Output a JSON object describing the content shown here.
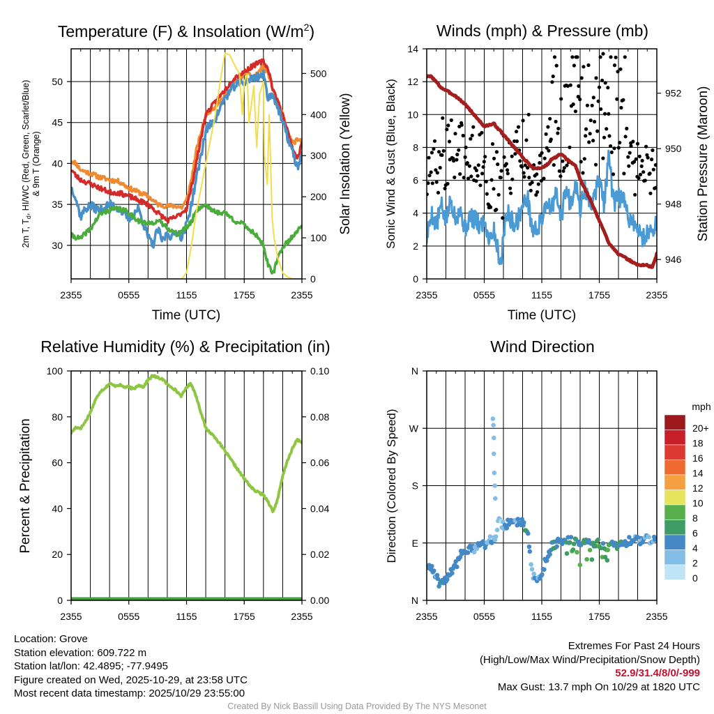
{
  "colors": {
    "red": "#d42a2a",
    "green": "#4aac3a",
    "scarlet_blue": "#4a90c8",
    "orange": "#f08a30",
    "yellow": "#f5dc4a",
    "blue": "#4a9ad6",
    "black": "#000000",
    "maroon": "#a41e1e",
    "rh": "#8ec641",
    "precip": "#3fa13a"
  },
  "time_ticks": [
    "2355",
    "0555",
    "1155",
    "1755",
    "2355"
  ],
  "chart_data": [
    {
      "type": "line",
      "title": "Temperature (F) & Insolation (W/m",
      "title_sup": "2",
      "title_end": ")",
      "xlabel": "Time (UTC)",
      "ylabel_lines": [
        "2m T, T",
        "d",
        ", HI/WC (Red, Green, Scarlet/Blue)",
        "& 9m T (Orange)"
      ],
      "ylabel_line1_start": "2m T, T",
      "ylabel_line1_sub": "d",
      "ylabel_line1_end": ", HI/WC (Red, Green, Scarlet/Blue)",
      "ylabel_line2": "& 9m T (Orange)",
      "ylabel_right": "Solar Insolation (Yellow)",
      "ylim": [
        25.9,
        54.0
      ],
      "y_ticks": [
        30,
        35,
        40,
        45,
        50
      ],
      "y2lim": [
        0,
        560
      ],
      "y2_ticks": [
        0,
        100,
        200,
        300,
        400,
        500
      ],
      "x_hours": [
        0,
        24
      ],
      "series": [
        {
          "name": "9m T",
          "color": "orange",
          "axis": "left",
          "x": [
            0,
            0.5,
            1,
            2,
            3,
            4,
            5,
            6,
            7,
            8,
            9,
            10,
            11,
            11.5,
            12,
            12.5,
            13,
            14,
            15,
            16,
            17,
            18,
            19,
            20,
            20.5,
            21,
            22,
            22.5,
            23,
            23.5,
            24
          ],
          "y": [
            40.4,
            40,
            39.2,
            38.8,
            38.3,
            38,
            37.8,
            37,
            36.5,
            36,
            35,
            34.8,
            34.8,
            34.6,
            35.5,
            38,
            41.5,
            46,
            47,
            48.3,
            49.7,
            51,
            50.6,
            51.8,
            51,
            49,
            46,
            44,
            42.5,
            42.8,
            42.7
          ]
        },
        {
          "name": "2m T",
          "color": "red",
          "axis": "left",
          "x": [
            0,
            0.5,
            1,
            2,
            3,
            4,
            5,
            6,
            7,
            8,
            9,
            10,
            11,
            12,
            12.5,
            13,
            14,
            15,
            16,
            17,
            18,
            19,
            20,
            20.5,
            21,
            22,
            23,
            23.5,
            24
          ],
          "y": [
            39.3,
            38.5,
            38,
            37.5,
            37,
            36.5,
            36.4,
            36,
            35.5,
            35,
            34,
            33,
            33.5,
            34.5,
            37,
            40,
            46,
            47.5,
            49,
            50.5,
            51.2,
            52,
            52.5,
            51.5,
            49,
            46,
            42,
            40.5,
            42.5
          ]
        },
        {
          "name": "HI/WC",
          "color": "scarlet_blue",
          "axis": "left",
          "x": [
            0,
            0.3,
            1,
            1.5,
            2,
            3,
            4,
            5,
            6,
            7,
            8,
            8.5,
            9,
            9.5,
            10,
            10.5,
            11,
            11.5,
            12,
            12.5,
            13,
            14,
            15,
            16,
            17,
            18,
            19,
            20,
            20.5,
            21,
            22,
            23,
            23.5,
            24
          ],
          "y": [
            37,
            36.5,
            33.5,
            34.5,
            34.8,
            34.3,
            35,
            34.5,
            33.2,
            34.5,
            31,
            30,
            32,
            30.5,
            31.5,
            31,
            31.8,
            31,
            32.5,
            35,
            38,
            44,
            45.5,
            48,
            49.5,
            50,
            50.5,
            50.8,
            48,
            48.5,
            45,
            41.5,
            39.5,
            41
          ]
        },
        {
          "name": "Td",
          "color": "green",
          "axis": "left",
          "x": [
            0,
            0.5,
            1,
            1.5,
            2,
            3,
            4,
            5,
            6,
            7,
            8,
            9,
            10,
            11,
            12,
            12.5,
            13,
            14,
            15,
            16,
            17,
            18,
            19,
            19.5,
            20,
            20.5,
            21,
            21.5,
            22,
            23,
            24
          ],
          "y": [
            31.2,
            31,
            30.8,
            31.5,
            32,
            33.8,
            34.3,
            34.5,
            34,
            33,
            32.6,
            33,
            32.2,
            31.3,
            32.2,
            32.8,
            34.3,
            35,
            34,
            34,
            33,
            32.5,
            31.5,
            31,
            30,
            27.5,
            26.5,
            28.5,
            29.8,
            31,
            32.6
          ]
        },
        {
          "name": "Solar Insolation",
          "color": "yellow",
          "axis": "right",
          "x": [
            0,
            6,
            11.5,
            12,
            12.5,
            13,
            14,
            15,
            15.5,
            16,
            16.5,
            17,
            17.5,
            17.8,
            18,
            18.3,
            18.5,
            19,
            19.3,
            19.6,
            20,
            20.1,
            20.4,
            20.6,
            20.9,
            21.1,
            21.5,
            22,
            22.5,
            23,
            24
          ],
          "y": [
            0,
            0,
            0,
            15,
            80,
            160,
            280,
            400,
            480,
            550,
            545,
            520,
            500,
            400,
            480,
            500,
            380,
            470,
            320,
            450,
            480,
            300,
            230,
            400,
            150,
            100,
            50,
            15,
            5,
            0,
            0
          ]
        }
      ]
    },
    {
      "type": "line",
      "title": "Winds (mph) & Pressure (mb)",
      "xlabel": "Time (UTC)",
      "ylabel": "Sonic Wind & Gust (Blue, Black)",
      "ylabel_right": "Station Pressure (Maroon)",
      "ylim": [
        0,
        14
      ],
      "y_ticks": [
        0,
        2,
        4,
        6,
        8,
        10,
        12,
        14
      ],
      "y2lim": [
        945.3,
        953.6
      ],
      "y2_ticks": [
        946,
        948,
        950,
        952
      ],
      "x_hours": [
        0,
        24
      ],
      "series": [
        {
          "name": "Sonic Wind",
          "color": "blue",
          "axis": "left",
          "x": [
            0,
            0.5,
            1,
            1.5,
            2,
            2.5,
            3,
            3.5,
            4,
            4.5,
            5,
            5.5,
            6,
            6.5,
            7,
            7.5,
            7.8,
            8,
            8.5,
            9,
            9.5,
            10,
            10.5,
            11,
            11.5,
            12,
            12.5,
            13,
            13.5,
            14,
            14.5,
            15,
            15.5,
            16,
            16.5,
            17,
            17.5,
            18,
            18.5,
            19,
            19.5,
            20,
            20.5,
            21,
            21.5,
            22,
            22.5,
            23,
            23.5,
            24
          ],
          "y": [
            2.5,
            4,
            3.2,
            4.5,
            3.5,
            4.8,
            3.8,
            4.2,
            3,
            3.8,
            3.6,
            3.2,
            3.5,
            2.5,
            3,
            1.5,
            1,
            3,
            4,
            3.4,
            3.6,
            4.4,
            5,
            3,
            3,
            3.6,
            4.8,
            4.2,
            5.2,
            3.6,
            5.5,
            4.5,
            6,
            4.2,
            5.5,
            4.5,
            5,
            6.2,
            4.5,
            7.5,
            4.5,
            5,
            4.8,
            3.8,
            3.5,
            3,
            2.5,
            2.8,
            3,
            3.5
          ]
        },
        {
          "name": "Station Pressure",
          "color": "maroon",
          "axis": "right",
          "x": [
            0,
            0.5,
            1,
            1.5,
            2,
            2.5,
            3,
            4,
            5,
            6,
            7,
            8,
            9,
            9.5,
            10,
            11,
            12,
            12.5,
            13,
            14,
            15,
            15.5,
            16,
            17,
            18,
            18.5,
            19,
            20,
            21,
            22,
            22.5,
            23,
            23.5,
            24
          ],
          "y": [
            952.6,
            952.6,
            952.4,
            952.2,
            952.1,
            952,
            951.9,
            951.6,
            951.2,
            950.8,
            950.9,
            950.5,
            950.1,
            949.9,
            949.7,
            949.3,
            949.3,
            949.4,
            949.6,
            949.8,
            949.5,
            949.4,
            948.9,
            948.2,
            947.4,
            947,
            946.6,
            946.2,
            946,
            945.8,
            945.8,
            945.8,
            945.7,
            946.2
          ]
        }
      ],
      "gust_count": 250,
      "gust_max": 13.7,
      "gust_max_hour": 18.4
    },
    {
      "type": "line",
      "title": "Relative Humidity (%) & Precipitation (in)",
      "ylabel": "Percent & Precipitation",
      "ylim": [
        0,
        100
      ],
      "y_ticks": [
        0,
        20,
        40,
        60,
        80,
        100
      ],
      "y2lim": [
        0,
        0.1
      ],
      "y2_ticks": [
        "0.00",
        "0.02",
        "0.04",
        "0.06",
        "0.08",
        "0.10"
      ],
      "x_hours": [
        0,
        24
      ],
      "series": [
        {
          "name": "Relative Humidity",
          "color": "rh",
          "axis": "left",
          "x": [
            0,
            0.5,
            1,
            1.5,
            2,
            2.5,
            3,
            3.5,
            4,
            4.5,
            5,
            5.5,
            6,
            6.5,
            7,
            7.5,
            8,
            8.5,
            9,
            9.5,
            10,
            10.5,
            11,
            11.5,
            12,
            12.5,
            13,
            14,
            15,
            16,
            17,
            18,
            19,
            20,
            20.5,
            21,
            21.5,
            22,
            22.5,
            23,
            23.5,
            24
          ],
          "y": [
            73,
            75.5,
            75,
            78,
            82,
            87,
            91,
            92.5,
            94.5,
            93.5,
            94,
            93,
            93,
            92,
            94,
            93,
            96,
            98,
            97,
            96.5,
            94,
            93,
            91,
            89,
            93,
            94.5,
            89,
            75,
            71,
            65,
            59,
            53,
            48,
            46,
            43,
            38.5,
            44.5,
            54,
            61,
            66,
            70,
            69
          ]
        },
        {
          "name": "Precipitation",
          "color": "precip",
          "axis": "right",
          "x": [
            0,
            24
          ],
          "y": [
            0,
            0
          ]
        }
      ]
    },
    {
      "type": "scatter",
      "title": "Wind Direction",
      "ylabel": "Direction (Colored By Speed)",
      "y_tick_labels": [
        "N",
        "E",
        "S",
        "W",
        "N"
      ],
      "ylim": [
        0,
        360
      ],
      "x_hours": [
        0,
        24
      ],
      "legend": {
        "title": "mph",
        "labels": [
          "20+",
          "18",
          "16",
          "14",
          "12",
          "10",
          "8",
          "6",
          "4",
          "2",
          "0"
        ],
        "colors": [
          "#9c1a1e",
          "#c8202a",
          "#dc3a30",
          "#ee6a30",
          "#f4a040",
          "#e6e35c",
          "#58b04c",
          "#3e9c64",
          "#4488c6",
          "#84bee6",
          "#bfe4f6"
        ]
      }
    }
  ],
  "info": {
    "location": "Location: Grove",
    "elevation": "Station elevation: 609.722 m",
    "latlon": "Station lat/lon: 42.4895; -77.9495",
    "created": "Figure created on Wed, 2025-10-29, at 23:58 UTC",
    "recent": "Most recent data timestamp: 2025/10/29 23:55:00"
  },
  "extremes": {
    "title": "Extremes For Past 24 Hours",
    "subtitle": "(High/Low/Max Wind/Precipitation/Snow Depth)",
    "values": "52.9/31.4/8/0/-999",
    "max_gust": "Max Gust: 13.7 mph On 10/29 at 1820 UTC"
  },
  "credit": "Created By Nick Bassill Using Data Provided By The NYS Mesonet"
}
